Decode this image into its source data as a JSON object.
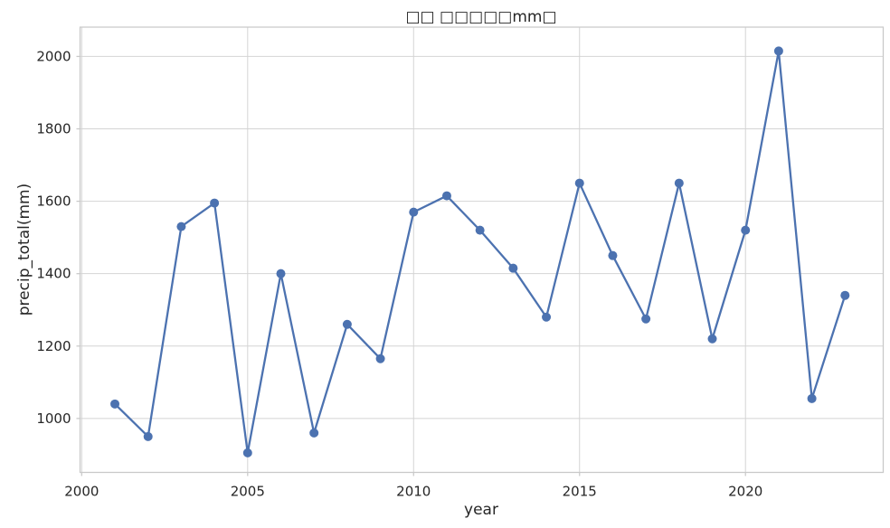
{
  "chart_data": {
    "type": "line",
    "title": "□□ □□□□□mm□",
    "xlabel": "year",
    "ylabel": "precip_total(mm)",
    "x": [
      2001,
      2002,
      2003,
      2004,
      2005,
      2006,
      2007,
      2008,
      2009,
      2010,
      2011,
      2012,
      2013,
      2014,
      2015,
      2016,
      2017,
      2018,
      2019,
      2020,
      2021,
      2022,
      2023
    ],
    "values": [
      1040,
      950,
      1530,
      1595,
      905,
      1400,
      960,
      1260,
      1165,
      1570,
      1615,
      1520,
      1415,
      1280,
      1650,
      1450,
      1275,
      1650,
      1220,
      1520,
      2015,
      1055,
      1340
    ],
    "xticks": [
      2000,
      2005,
      2010,
      2015,
      2020
    ],
    "yticks": [
      1000,
      1200,
      1400,
      1600,
      1800,
      2000
    ],
    "xlim": [
      1999.95,
      2024.15
    ],
    "ylim": [
      851,
      2081
    ],
    "grid": true,
    "legend": "none",
    "line_color": "#4C72B0",
    "marker": "circle",
    "marker_size": 5,
    "grid_color": "#D4D4D4",
    "frame_color": "#C9C9C9",
    "text_color": "#262626",
    "background_color": "#FFFFFF"
  }
}
